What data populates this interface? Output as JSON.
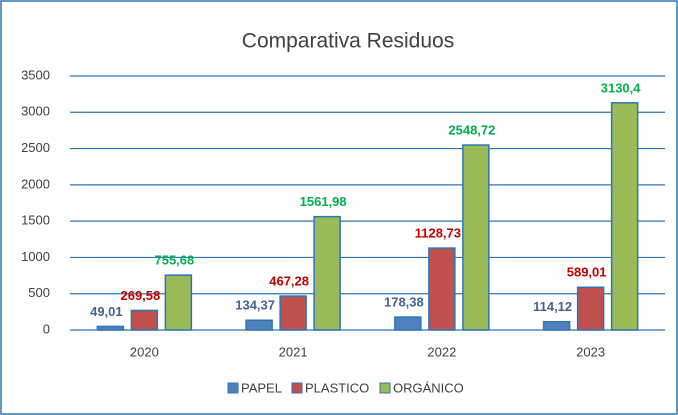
{
  "chart_data": {
    "type": "bar",
    "title": "Comparativa Residuos",
    "categories": [
      "2020",
      "2021",
      "2022",
      "2023"
    ],
    "series": [
      {
        "name": "PAPEL",
        "color": "#4f81bd",
        "label_color": "#44628f",
        "values": [
          49.01,
          134.37,
          178.38,
          114.12
        ],
        "value_labels": [
          "49,01",
          "134,37",
          "178,38",
          "114,12"
        ]
      },
      {
        "name": "PLASTICO",
        "color": "#c0504d",
        "label_color": "#c00000",
        "values": [
          269.58,
          467.28,
          1128.73,
          589.01
        ],
        "value_labels": [
          "269,58",
          "467,28",
          "1128,73",
          "589,01"
        ]
      },
      {
        "name": "ORGÁNICO",
        "color": "#9bbb59",
        "label_color": "#00b050",
        "values": [
          755.68,
          1561.98,
          2548.72,
          3130.4
        ],
        "value_labels": [
          "755,68",
          "1561,98",
          "2548,72",
          "3130,4"
        ]
      }
    ],
    "ylim": [
      0,
      3500
    ],
    "yticks": [
      0,
      500,
      1000,
      1500,
      2000,
      2500,
      3000,
      3500
    ],
    "grid": true,
    "legend": "bottom"
  }
}
